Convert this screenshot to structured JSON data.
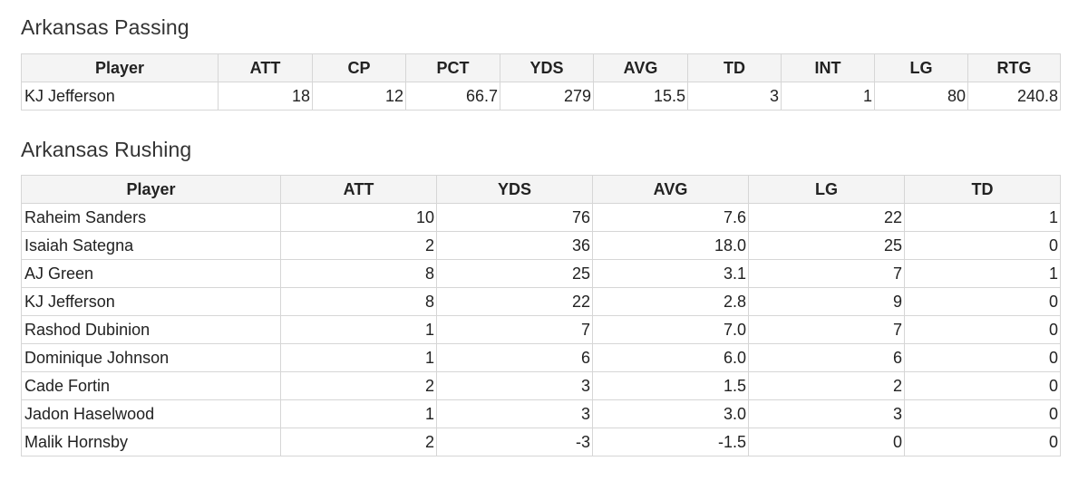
{
  "passing": {
    "title": "Arkansas Passing",
    "headers": [
      "Player",
      "ATT",
      "CP",
      "PCT",
      "YDS",
      "AVG",
      "TD",
      "INT",
      "LG",
      "RTG"
    ],
    "rows": [
      [
        "KJ Jefferson",
        "18",
        "12",
        "66.7",
        "279",
        "15.5",
        "3",
        "1",
        "80",
        "240.8"
      ]
    ]
  },
  "rushing": {
    "title": "Arkansas Rushing",
    "headers": [
      "Player",
      "ATT",
      "YDS",
      "AVG",
      "LG",
      "TD"
    ],
    "rows": [
      [
        "Raheim Sanders",
        "10",
        "76",
        "7.6",
        "22",
        "1"
      ],
      [
        "Isaiah Sategna",
        "2",
        "36",
        "18.0",
        "25",
        "0"
      ],
      [
        "AJ Green",
        "8",
        "25",
        "3.1",
        "7",
        "1"
      ],
      [
        "KJ Jefferson",
        "8",
        "22",
        "2.8",
        "9",
        "0"
      ],
      [
        "Rashod Dubinion",
        "1",
        "7",
        "7.0",
        "7",
        "0"
      ],
      [
        "Dominique Johnson",
        "1",
        "6",
        "6.0",
        "6",
        "0"
      ],
      [
        "Cade Fortin",
        "2",
        "3",
        "1.5",
        "2",
        "0"
      ],
      [
        "Jadon Haselwood",
        "1",
        "3",
        "3.0",
        "3",
        "0"
      ],
      [
        "Malik Hornsby",
        "2",
        "-3",
        "-1.5",
        "0",
        "0"
      ]
    ]
  }
}
